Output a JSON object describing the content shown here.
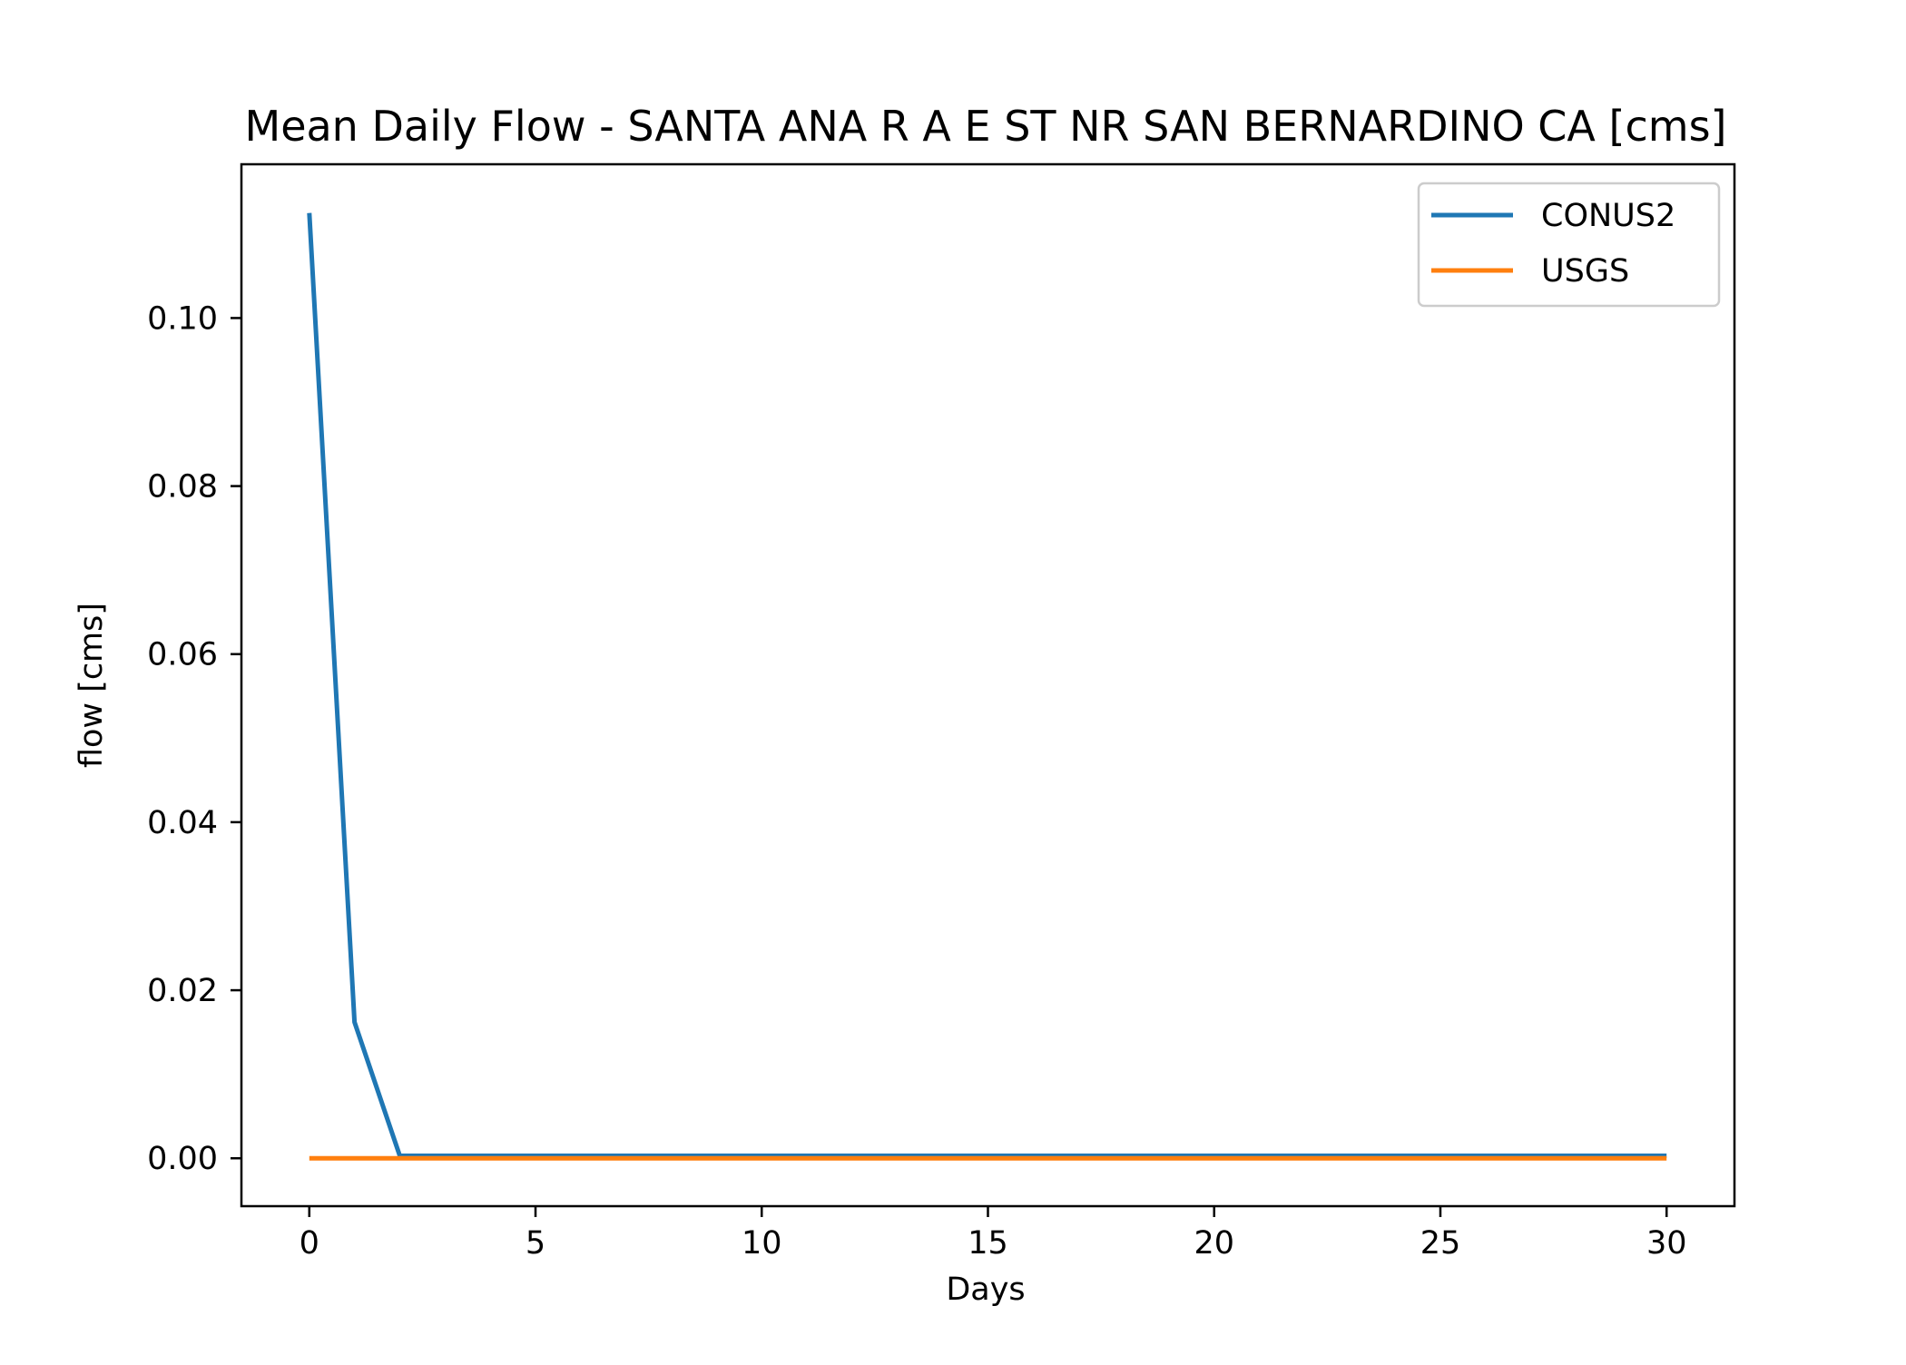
{
  "chart_data": {
    "type": "line",
    "title": "Mean Daily Flow - SANTA ANA R A E ST NR SAN BERNARDINO CA [cms]",
    "xlabel": "Days",
    "ylabel": "flow [cms]",
    "xlim": [
      -1.5,
      31.5
    ],
    "ylim": [
      -0.0057,
      0.1183
    ],
    "xticks": [
      0,
      5,
      10,
      15,
      20,
      25,
      30
    ],
    "xtick_labels": [
      "0",
      "5",
      "10",
      "15",
      "20",
      "25",
      "30"
    ],
    "yticks": [
      0.0,
      0.02,
      0.04,
      0.06,
      0.08,
      0.1
    ],
    "ytick_labels": [
      "0.00",
      "0.02",
      "0.04",
      "0.06",
      "0.08",
      "0.10"
    ],
    "grid": false,
    "legend_position": "top-right",
    "x": [
      0,
      1,
      2,
      3,
      4,
      5,
      6,
      7,
      8,
      9,
      10,
      11,
      12,
      13,
      14,
      15,
      16,
      17,
      18,
      19,
      20,
      21,
      22,
      23,
      24,
      25,
      26,
      27,
      28,
      29,
      30
    ],
    "series": [
      {
        "name": "CONUS2",
        "color": "#1f77b4",
        "values": [
          0.1125,
          0.0162,
          0.0003,
          0.0003,
          0.0003,
          0.0003,
          0.0003,
          0.0003,
          0.0003,
          0.0003,
          0.0003,
          0.0003,
          0.0003,
          0.0003,
          0.0003,
          0.0003,
          0.0003,
          0.0003,
          0.0003,
          0.0003,
          0.0003,
          0.0003,
          0.0003,
          0.0003,
          0.0003,
          0.0003,
          0.0003,
          0.0003,
          0.0003,
          0.0003,
          0.0003
        ]
      },
      {
        "name": "USGS",
        "color": "#ff7f0e",
        "values": [
          0,
          0,
          0,
          0,
          0,
          0,
          0,
          0,
          0,
          0,
          0,
          0,
          0,
          0,
          0,
          0,
          0,
          0,
          0,
          0,
          0,
          0,
          0,
          0,
          0,
          0,
          0,
          0,
          0,
          0,
          0
        ]
      }
    ]
  }
}
